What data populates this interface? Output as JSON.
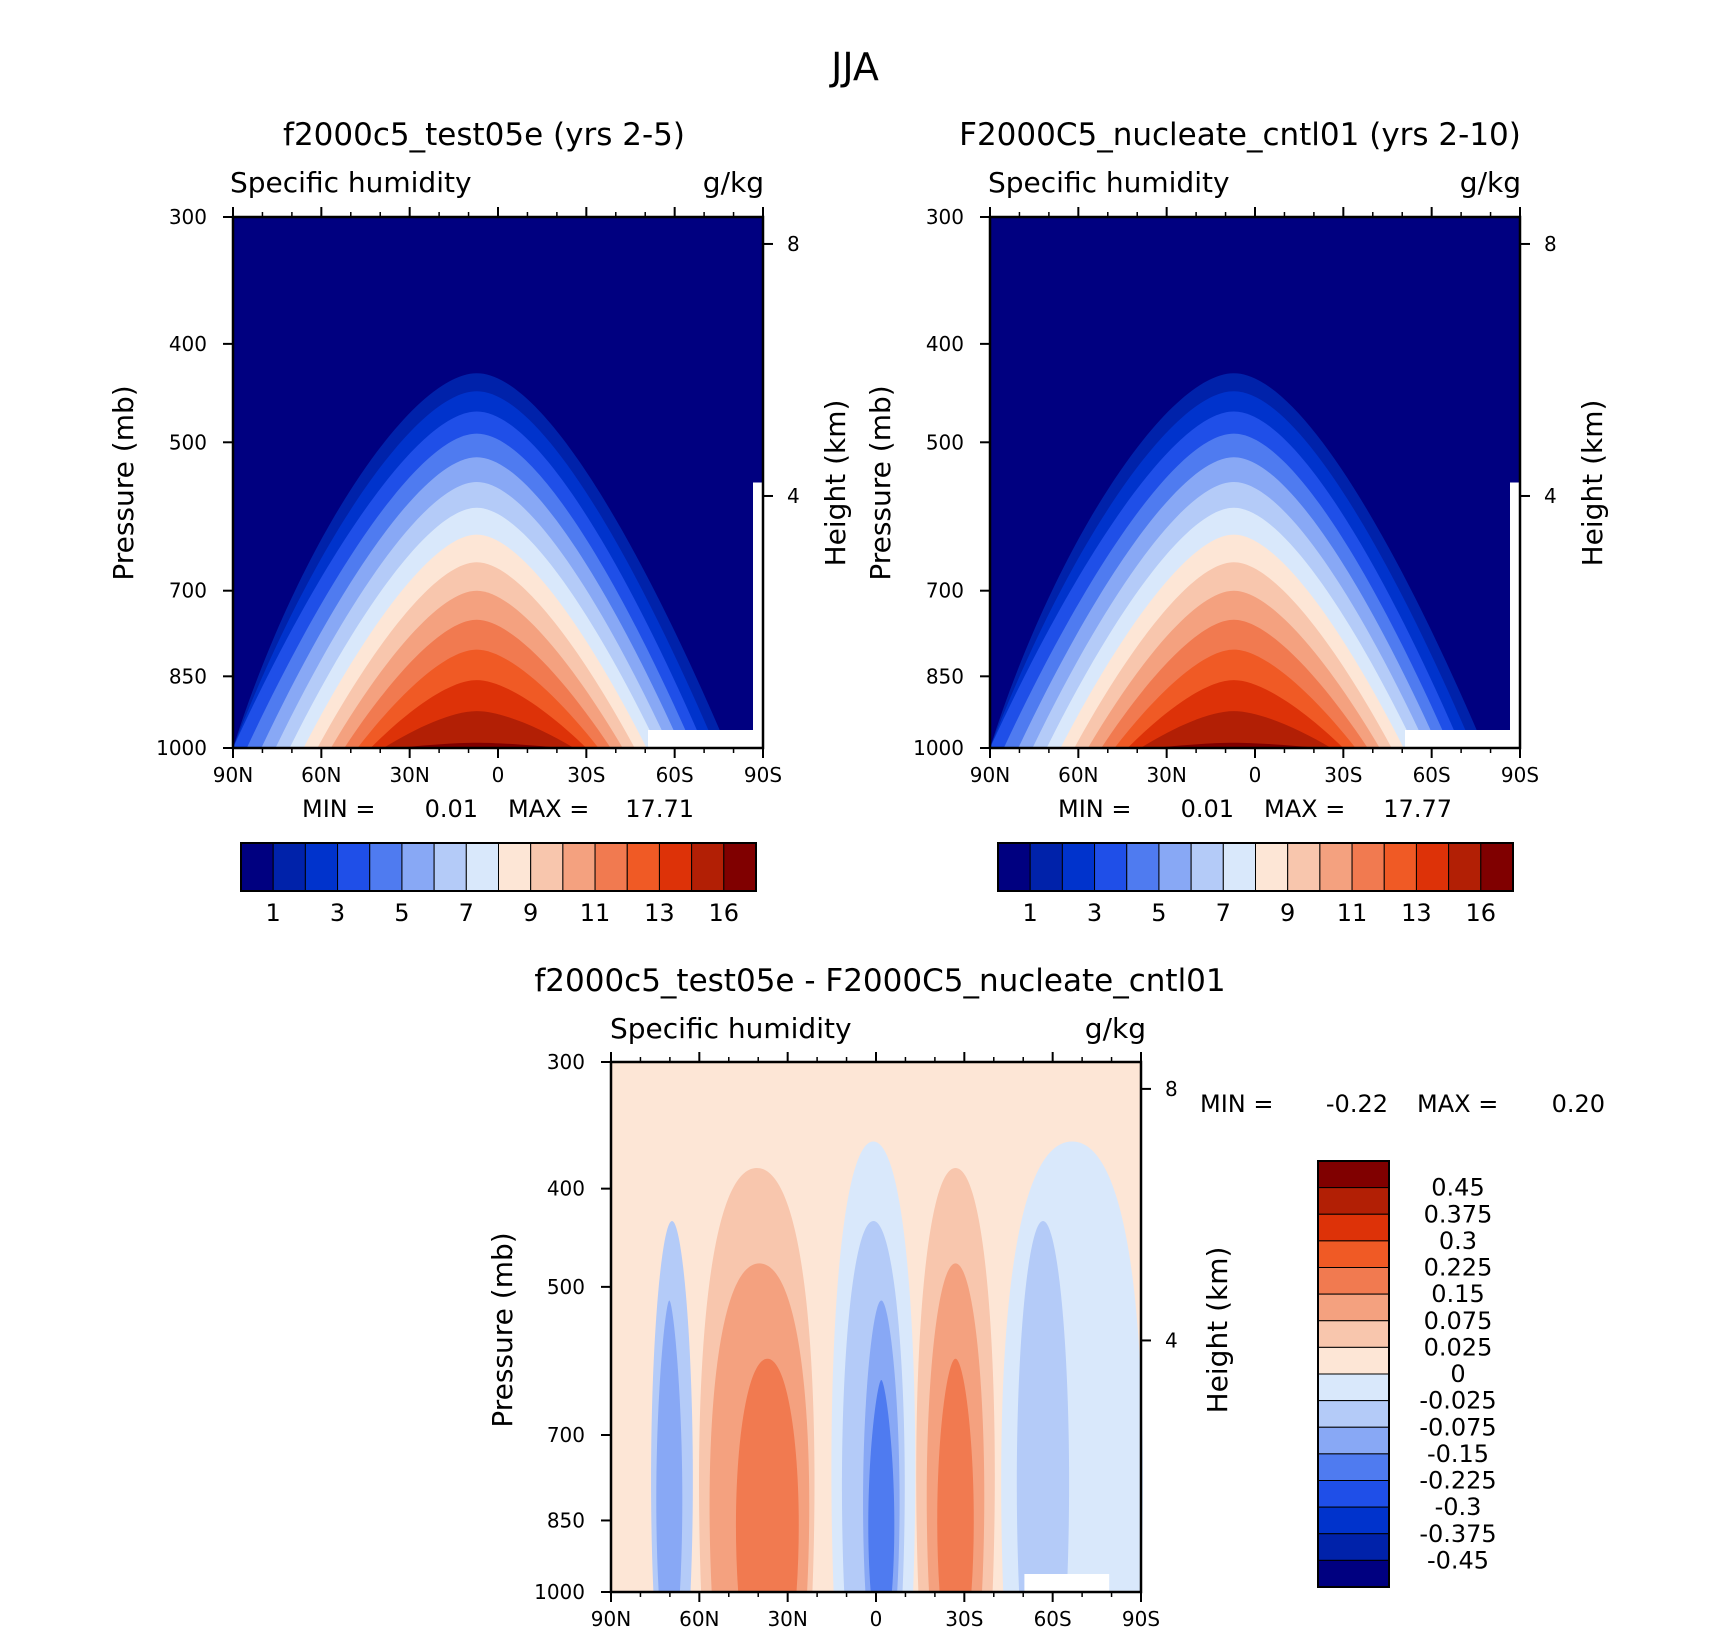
{
  "figure_title": "JJA",
  "chart_data": [
    {
      "id": "panel1",
      "type": "contour",
      "title": "f2000c5_test05e (yrs 2-5)",
      "left_label": "Specific humidity",
      "right_label": "g/kg",
      "xlabel": "",
      "ylabel": "Pressure (mb)",
      "y2label": "Height (km)",
      "x_ticks": [
        "90N",
        "60N",
        "30N",
        "0",
        "30S",
        "60S",
        "90S"
      ],
      "y_ticks": [
        300,
        400,
        500,
        700,
        850,
        1000
      ],
      "y2_ticks": [
        8,
        4
      ],
      "ylim": [
        1000,
        300
      ],
      "y_scale": "log",
      "min_label": "MIN =",
      "min_value": "0.01",
      "max_label": "MAX =",
      "max_value": "17.71",
      "colorbar": {
        "orientation": "horizontal",
        "labels": [
          "1",
          "3",
          "5",
          "7",
          "9",
          "11",
          "13",
          "16"
        ],
        "colors": [
          "#000080",
          "#0022aa",
          "#0033cc",
          "#1f4fe8",
          "#4f7bf0",
          "#88a8f5",
          "#b4cbf8",
          "#d9e8fb",
          "#fde6d6",
          "#f8c6ad",
          "#f4a17f",
          "#f17a50",
          "#f05a25",
          "#dd3208",
          "#b21f05",
          "#800000"
        ]
      }
    },
    {
      "id": "panel2",
      "type": "contour",
      "title": "F2000C5_nucleate_cntl01 (yrs 2-10)",
      "left_label": "Specific humidity",
      "right_label": "g/kg",
      "xlabel": "",
      "ylabel": "Pressure (mb)",
      "y2label": "Height (km)",
      "x_ticks": [
        "90N",
        "60N",
        "30N",
        "0",
        "30S",
        "60S",
        "90S"
      ],
      "y_ticks": [
        300,
        400,
        500,
        700,
        850,
        1000
      ],
      "y2_ticks": [
        8,
        4
      ],
      "ylim": [
        1000,
        300
      ],
      "y_scale": "log",
      "min_label": "MIN =",
      "min_value": "0.01",
      "max_label": "MAX =",
      "max_value": "17.77",
      "colorbar": {
        "orientation": "horizontal",
        "labels": [
          "1",
          "3",
          "5",
          "7",
          "9",
          "11",
          "13",
          "16"
        ],
        "colors": [
          "#000080",
          "#0022aa",
          "#0033cc",
          "#1f4fe8",
          "#4f7bf0",
          "#88a8f5",
          "#b4cbf8",
          "#d9e8fb",
          "#fde6d6",
          "#f8c6ad",
          "#f4a17f",
          "#f17a50",
          "#f05a25",
          "#dd3208",
          "#b21f05",
          "#800000"
        ]
      }
    },
    {
      "id": "panel3",
      "type": "contour",
      "title": "f2000c5_test05e - F2000C5_nucleate_cntl01",
      "left_label": "Specific humidity",
      "right_label": "g/kg",
      "xlabel": "",
      "ylabel": "Pressure (mb)",
      "y2label": "Height (km)",
      "x_ticks": [
        "90N",
        "60N",
        "30N",
        "0",
        "30S",
        "60S",
        "90S"
      ],
      "y_ticks": [
        300,
        400,
        500,
        700,
        850,
        1000
      ],
      "y2_ticks": [
        8,
        4
      ],
      "ylim": [
        1000,
        300
      ],
      "y_scale": "log",
      "min_label": "MIN =",
      "min_value": "-0.22",
      "max_label": "MAX =",
      "max_value": "0.20",
      "colorbar": {
        "orientation": "vertical",
        "labels": [
          "0.45",
          "0.375",
          "0.3",
          "0.225",
          "0.15",
          "0.075",
          "0.025",
          "0",
          "-0.025",
          "-0.075",
          "-0.15",
          "-0.225",
          "-0.3",
          "-0.375",
          "-0.45"
        ],
        "colors": [
          "#800000",
          "#b21f05",
          "#dd3208",
          "#f05a25",
          "#f17a50",
          "#f4a17f",
          "#f8c6ad",
          "#fde6d6",
          "#d9e8fb",
          "#b4cbf8",
          "#88a8f5",
          "#4f7bf0",
          "#1f4fe8",
          "#0033cc",
          "#0022aa",
          "#000080"
        ]
      }
    }
  ]
}
